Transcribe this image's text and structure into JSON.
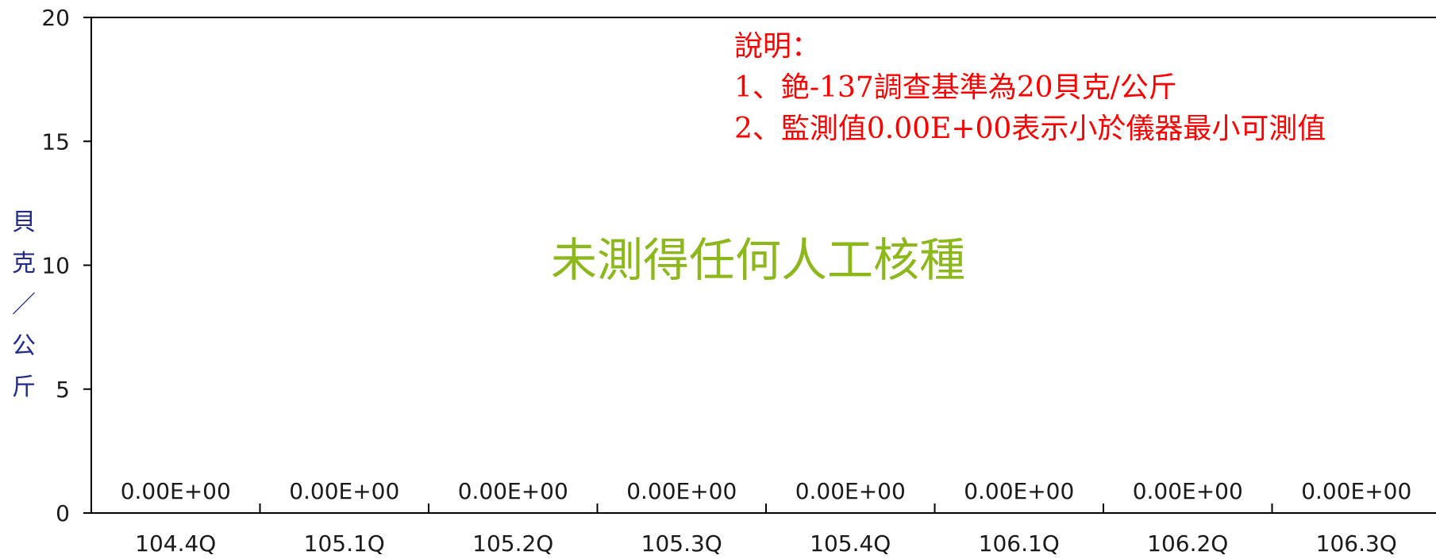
{
  "chart_data": {
    "type": "bar",
    "categories": [
      "104.4Q",
      "105.1Q",
      "105.2Q",
      "105.3Q",
      "105.4Q",
      "106.1Q",
      "106.2Q",
      "106.3Q"
    ],
    "values": [
      0,
      0,
      0,
      0,
      0,
      0,
      0,
      0
    ],
    "data_labels": [
      "0.00E+00",
      "0.00E+00",
      "0.00E+00",
      "0.00E+00",
      "0.00E+00",
      "0.00E+00",
      "0.00E+00",
      "0.00E+00"
    ],
    "ylabel": "貝克／公斤",
    "ylim": [
      0,
      20
    ],
    "yticks": [
      0,
      5,
      10,
      15,
      20
    ],
    "grid": false,
    "annotations": {
      "notes": [
        "說明：",
        "1、銫-137調查基準為20貝克/公斤",
        "2、監測值0.00E+00表示小於儀器最小可測值"
      ],
      "center_text": "未測得任何人工核種"
    },
    "colors": {
      "notes": "#ff0000",
      "center_text": "#8cb81c",
      "ylabel": "#1f2a8a",
      "axis": "#000000"
    }
  }
}
